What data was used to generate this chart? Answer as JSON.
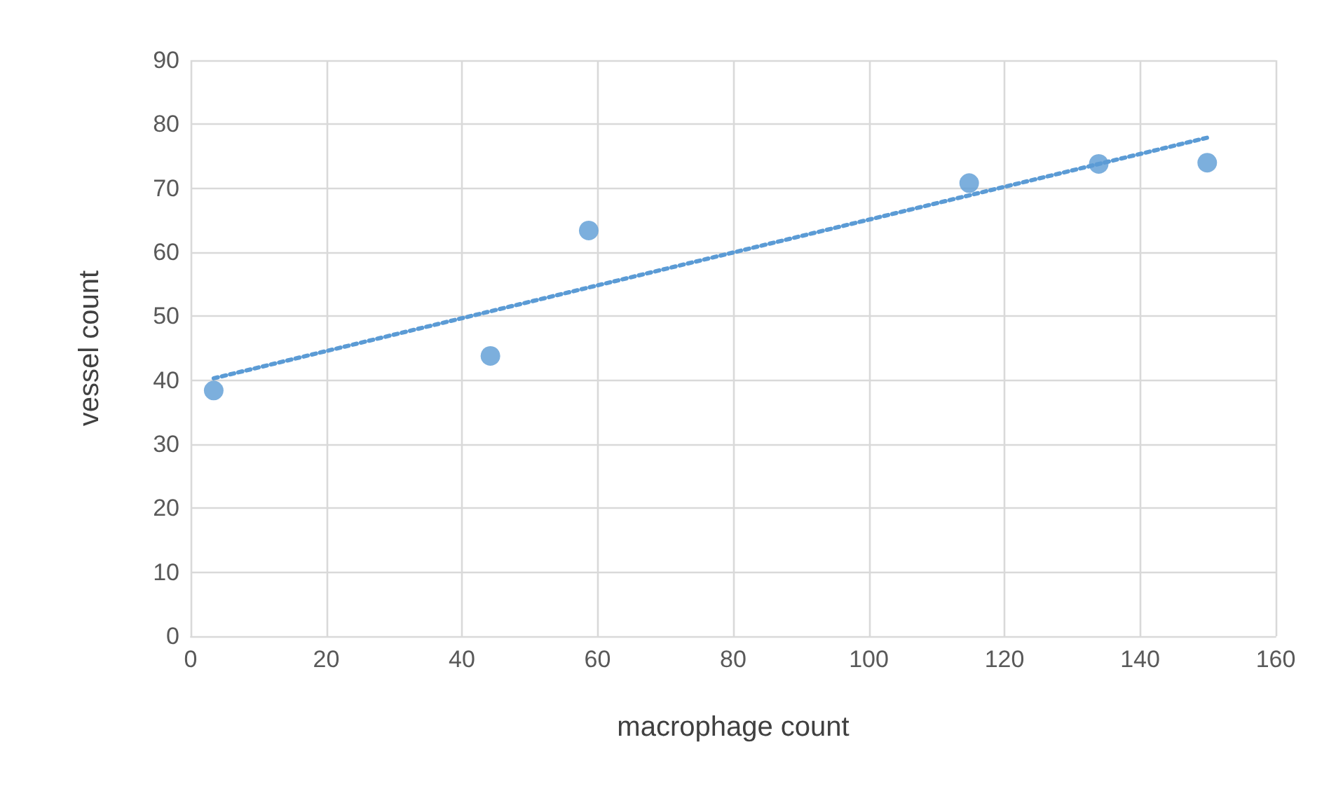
{
  "chart_data": {
    "type": "scatter",
    "xlabel": "macrophage count",
    "ylabel": "vessel count",
    "x": [
      3.4,
      44.2,
      58.7,
      114.8,
      133.9,
      149.9
    ],
    "series": [
      {
        "color": "#5b9bd5",
        "marker": "circle",
        "values": [
          38.4,
          43.8,
          63.4,
          70.8,
          73.8,
          74.0
        ]
      },
      {
        "type": "line",
        "color": "#5b9bd5",
        "line_style": "dotted",
        "marker": "none",
        "x": [
          3.4,
          149.9
        ],
        "values": [
          40.3,
          77.9
        ]
      }
    ],
    "xlim": [
      0,
      160
    ],
    "xticks": [
      0,
      20,
      40,
      60,
      80,
      100,
      120,
      140,
      160
    ],
    "ylim": [
      0,
      90
    ],
    "yticks": [
      0,
      10,
      20,
      30,
      40,
      50,
      60,
      70,
      80,
      90
    ],
    "grid": true
  }
}
